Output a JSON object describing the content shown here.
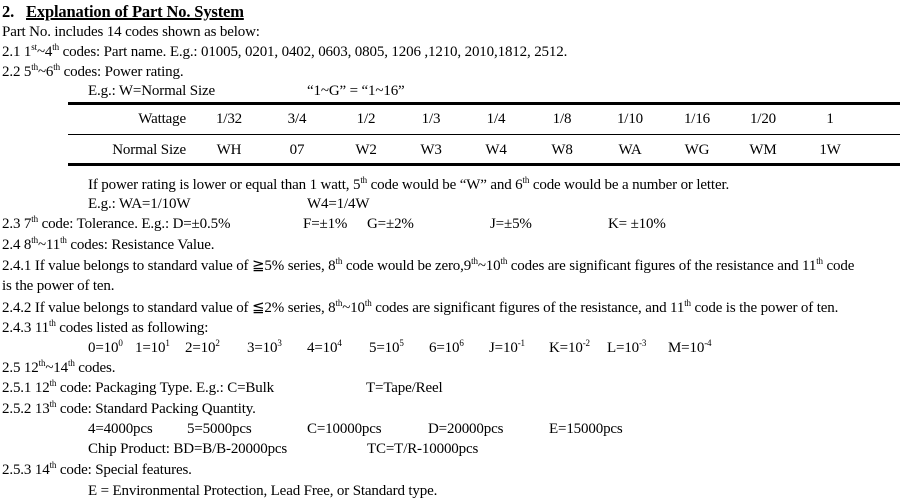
{
  "title": {
    "number": "2.",
    "text": "Explanation of Part No. System"
  },
  "lines": [
    {
      "items": [
        [
          {
            "t": "Part No. includes 14 codes shown as below:"
          }
        ]
      ]
    },
    {
      "items": [
        [
          {
            "t": "2.1 1"
          },
          {
            "t": "st",
            "s": 1
          },
          {
            "t": "~4"
          },
          {
            "t": "th",
            "s": 1
          },
          {
            "t": " codes: Part name. E.g.: 01005, 0201, 0402, 0603, 0805, 1206 ,1210, 2010,1812, 2512."
          }
        ]
      ]
    },
    {
      "items": [
        [
          {
            "t": "2.2 5"
          },
          {
            "t": "th",
            "s": 1
          },
          {
            "t": "~6"
          },
          {
            "t": "th",
            "s": 1
          },
          {
            "t": " codes: Power rating."
          }
        ]
      ]
    },
    {
      "items": [
        [
          {
            "t": "E.g.: W=Normal Size"
          }
        ],
        [
          {
            "t": "“1~G” = “1~16”"
          }
        ]
      ]
    },
    {
      "items": [
        [
          {
            "t": "If power rating is lower or equal than 1 watt, 5"
          },
          {
            "t": "th",
            "s": 1
          },
          {
            "t": " code would be “W” and 6"
          },
          {
            "t": "th",
            "s": 1
          },
          {
            "t": " code would be a number or letter."
          }
        ]
      ]
    },
    {
      "items": [
        [
          {
            "t": "E.g.: WA=1/10W"
          }
        ],
        [
          {
            "t": "W4=1/4W"
          }
        ]
      ]
    },
    {
      "items": [
        [
          {
            "t": "2.3 7"
          },
          {
            "t": "th",
            "s": 1
          },
          {
            "t": " code: Tolerance. E.g.: D=±0.5%"
          }
        ],
        [
          {
            "t": "F=±1%"
          }
        ],
        [
          {
            "t": "G=±2%"
          }
        ],
        [
          {
            "t": "J=±5%"
          }
        ],
        [
          {
            "t": "K= ±10%"
          }
        ]
      ]
    },
    {
      "items": [
        [
          {
            "t": "2.4 8"
          },
          {
            "t": "th",
            "s": 1
          },
          {
            "t": "~11"
          },
          {
            "t": "th",
            "s": 1
          },
          {
            "t": " codes: Resistance Value."
          }
        ]
      ]
    },
    {
      "items": [
        [
          {
            "t": "2.4.1 If value belongs to standard value of ≧5% series, 8"
          },
          {
            "t": "th",
            "s": 1
          },
          {
            "t": " code would be zero,9"
          },
          {
            "t": "th",
            "s": 1
          },
          {
            "t": "~10"
          },
          {
            "t": "th",
            "s": 1
          },
          {
            "t": " codes are significant figures of the resistance and 11"
          },
          {
            "t": "th",
            "s": 1
          },
          {
            "t": " code"
          }
        ]
      ]
    },
    {
      "items": [
        [
          {
            "t": "is the power of ten."
          }
        ]
      ]
    },
    {
      "items": [
        [
          {
            "t": "2.4.2 If value belongs to standard value of ≦2% series, 8"
          },
          {
            "t": "th",
            "s": 1
          },
          {
            "t": "~10"
          },
          {
            "t": "th",
            "s": 1
          },
          {
            "t": " codes are significant figures of the resistance, and 11"
          },
          {
            "t": "th",
            "s": 1
          },
          {
            "t": " code is the power of ten."
          }
        ]
      ]
    },
    {
      "items": [
        [
          {
            "t": "2.4.3 11"
          },
          {
            "t": "th",
            "s": 1
          },
          {
            "t": " codes listed as following:"
          }
        ]
      ]
    },
    {
      "items": [
        [
          {
            "t": "0=10"
          },
          {
            "t": "0",
            "s": 1
          }
        ],
        [
          {
            "t": "1=10"
          },
          {
            "t": "1",
            "s": 1
          }
        ],
        [
          {
            "t": "2=10"
          },
          {
            "t": "2",
            "s": 1
          }
        ],
        [
          {
            "t": "3=10"
          },
          {
            "t": "3",
            "s": 1
          }
        ],
        [
          {
            "t": "4=10"
          },
          {
            "t": "4",
            "s": 1
          }
        ],
        [
          {
            "t": "5=10"
          },
          {
            "t": "5",
            "s": 1
          }
        ],
        [
          {
            "t": "6=10"
          },
          {
            "t": "6",
            "s": 1
          }
        ],
        [
          {
            "t": "J=10"
          },
          {
            "t": "-1",
            "s": 1
          }
        ],
        [
          {
            "t": "K=10"
          },
          {
            "t": "-2",
            "s": 1
          }
        ],
        [
          {
            "t": "L=10"
          },
          {
            "t": "-3",
            "s": 1
          }
        ],
        [
          {
            "t": "M=10"
          },
          {
            "t": "-4",
            "s": 1
          }
        ]
      ]
    },
    {
      "items": [
        [
          {
            "t": "2.5 12"
          },
          {
            "t": "th",
            "s": 1
          },
          {
            "t": "~14"
          },
          {
            "t": "th",
            "s": 1
          },
          {
            "t": " codes."
          }
        ]
      ]
    },
    {
      "items": [
        [
          {
            "t": "2.5.1 12"
          },
          {
            "t": "th",
            "s": 1
          },
          {
            "t": " code: Packaging Type. E.g.: C=Bulk"
          }
        ],
        [
          {
            "t": "T=Tape/Reel"
          }
        ]
      ]
    },
    {
      "items": [
        [
          {
            "t": "2.5.2 13"
          },
          {
            "t": "th",
            "s": 1
          },
          {
            "t": " code: Standard Packing Quantity."
          }
        ]
      ]
    },
    {
      "items": [
        [
          {
            "t": "4=4000pcs"
          }
        ],
        [
          {
            "t": "5=5000pcs"
          }
        ],
        [
          {
            "t": "C=10000pcs"
          }
        ],
        [
          {
            "t": "D=20000pcs"
          }
        ],
        [
          {
            "t": "E=15000pcs"
          }
        ]
      ]
    },
    {
      "items": [
        [
          {
            "t": "Chip Product:  BD=B/B-20000pcs"
          }
        ],
        [
          {
            "t": "TC=T/R-10000pcs"
          }
        ]
      ]
    },
    {
      "items": [
        [
          {
            "t": "2.5.3 14"
          },
          {
            "t": "th",
            "s": 1
          },
          {
            "t": " code: Special features."
          }
        ]
      ]
    },
    {
      "items": [
        [
          {
            "t": "E = Environmental Protection, Lead Free, or Standard type."
          }
        ]
      ]
    }
  ],
  "table": {
    "rows": [
      {
        "label": "Wattage",
        "cells": [
          "1/32",
          "3/4",
          "1/2",
          "1/3",
          "1/4",
          "1/8",
          "1/10",
          "1/16",
          "1/20",
          "1"
        ]
      },
      {
        "label": "Normal Size",
        "cells": [
          "WH",
          "07",
          "W2",
          "W3",
          "W4",
          "W8",
          "WA",
          "WG",
          "WM",
          "1W"
        ]
      }
    ]
  }
}
